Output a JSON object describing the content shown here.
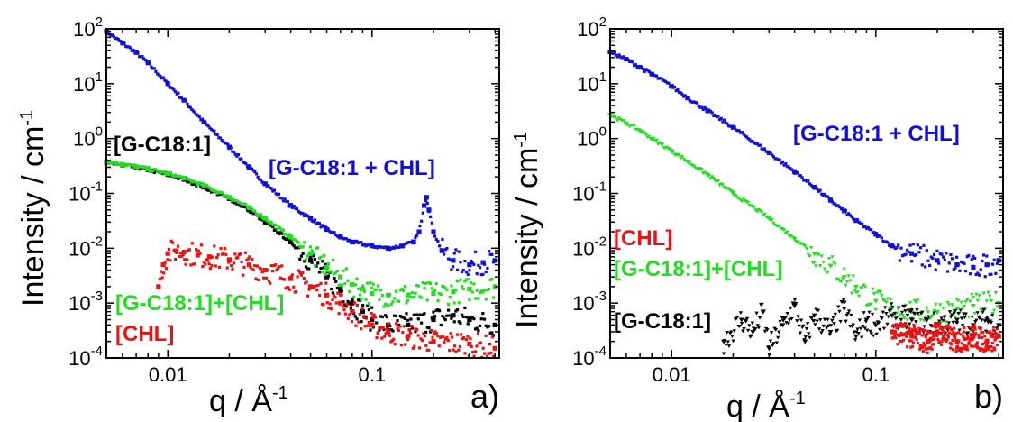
{
  "figure": {
    "panel_labels": [
      "a)",
      "b)"
    ]
  },
  "chart_data": [
    {
      "type": "scatter",
      "panel": "a)",
      "xlabel": "q / Å",
      "xlabel_sup": "-1",
      "ylabel": "Intensity / cm",
      "ylabel_sup": "-1",
      "xscale": "log",
      "yscale": "log",
      "xlim": [
        0.005,
        0.42
      ],
      "ylim": [
        0.0001,
        100
      ],
      "xticks": [
        {
          "v": 0.01,
          "label": "0.01"
        },
        {
          "v": 0.1,
          "label": "0.1"
        }
      ],
      "yticks": [
        {
          "v": 100,
          "b": "10",
          "e": "2"
        },
        {
          "v": 10,
          "b": "10",
          "e": "1"
        },
        {
          "v": 1,
          "b": "10",
          "e": "0"
        },
        {
          "v": 0.1,
          "b": "10",
          "e": "-1"
        },
        {
          "v": 0.01,
          "b": "10",
          "e": "-2"
        },
        {
          "v": 0.001,
          "b": "10",
          "e": "-3"
        },
        {
          "v": 0.0001,
          "b": "10",
          "e": "-4"
        }
      ],
      "annotations": [
        "[G-C18:1]",
        "[G-C18:1 + CHL]",
        "[G-C18:1]+[CHL]",
        "[CHL]"
      ],
      "series": [
        {
          "key": "gc18_chl",
          "color": "#1010d8",
          "marker": "square",
          "x": [
            0.005,
            0.006,
            0.007,
            0.008,
            0.01,
            0.012,
            0.015,
            0.02,
            0.025,
            0.03,
            0.04,
            0.05,
            0.06,
            0.07,
            0.08,
            0.1,
            0.12,
            0.14,
            0.16,
            0.17,
            0.18,
            0.185,
            0.19,
            0.2,
            0.22,
            0.25,
            0.3,
            0.35,
            0.4
          ],
          "y": [
            90,
            55,
            37,
            24,
            10,
            5,
            2,
            0.7,
            0.3,
            0.15,
            0.06,
            0.035,
            0.022,
            0.016,
            0.013,
            0.011,
            0.01,
            0.011,
            0.013,
            0.02,
            0.06,
            0.085,
            0.05,
            0.02,
            0.009,
            0.006,
            0.005,
            0.0055,
            0.006
          ]
        },
        {
          "key": "gc18",
          "color": "#000000",
          "marker": "square",
          "x": [
            0.005,
            0.006,
            0.007,
            0.008,
            0.01,
            0.012,
            0.015,
            0.02,
            0.025,
            0.03,
            0.04,
            0.05,
            0.06,
            0.07,
            0.08,
            0.09,
            0.1,
            0.12,
            0.15,
            0.2,
            0.25,
            0.3,
            0.4
          ],
          "y": [
            0.37,
            0.33,
            0.3,
            0.27,
            0.22,
            0.18,
            0.13,
            0.08,
            0.05,
            0.03,
            0.013,
            0.006,
            0.003,
            0.0018,
            0.001,
            0.0007,
            0.0005,
            0.0004,
            0.0004,
            0.0005,
            0.0006,
            0.0005,
            0.0004
          ]
        },
        {
          "key": "gc18_plus_chl",
          "color": "#22dd22",
          "marker": "square",
          "x": [
            0.005,
            0.006,
            0.007,
            0.008,
            0.01,
            0.012,
            0.015,
            0.02,
            0.025,
            0.03,
            0.04,
            0.05,
            0.06,
            0.07,
            0.08,
            0.09,
            0.1,
            0.12,
            0.15,
            0.2,
            0.25,
            0.3,
            0.4
          ],
          "y": [
            0.38,
            0.34,
            0.31,
            0.28,
            0.23,
            0.19,
            0.14,
            0.085,
            0.055,
            0.035,
            0.016,
            0.008,
            0.0045,
            0.003,
            0.0022,
            0.0018,
            0.0015,
            0.0014,
            0.0014,
            0.0015,
            0.0016,
            0.0018,
            0.002
          ]
        },
        {
          "key": "chl",
          "color": "#ee1111",
          "marker": "square",
          "x": [
            0.009,
            0.0095,
            0.01,
            0.011,
            0.012,
            0.014,
            0.016,
            0.02,
            0.025,
            0.03,
            0.04,
            0.05,
            0.06,
            0.07,
            0.08,
            0.1,
            0.12,
            0.15,
            0.2,
            0.3,
            0.4
          ],
          "y": [
            0.002,
            0.005,
            0.008,
            0.009,
            0.0085,
            0.0075,
            0.007,
            0.0062,
            0.005,
            0.004,
            0.0028,
            0.002,
            0.0014,
            0.001,
            0.0007,
            0.0004,
            0.0003,
            0.00025,
            0.0002,
            0.00018,
            0.00015
          ]
        }
      ]
    },
    {
      "type": "scatter",
      "panel": "b)",
      "xlabel": "q / Å",
      "xlabel_sup": "-1",
      "ylabel": "Intensity / cm",
      "ylabel_sup": "-1",
      "xscale": "log",
      "yscale": "log",
      "xlim": [
        0.005,
        0.42
      ],
      "ylim": [
        0.0001,
        100
      ],
      "xticks": [
        {
          "v": 0.01,
          "label": "0.01"
        },
        {
          "v": 0.1,
          "label": "0.1"
        }
      ],
      "yticks": [
        {
          "v": 100,
          "b": "10",
          "e": "2"
        },
        {
          "v": 10,
          "b": "10",
          "e": "1"
        },
        {
          "v": 1,
          "b": "10",
          "e": "0"
        },
        {
          "v": 0.1,
          "b": "10",
          "e": "-1"
        },
        {
          "v": 0.01,
          "b": "10",
          "e": "-2"
        },
        {
          "v": 0.001,
          "b": "10",
          "e": "-3"
        },
        {
          "v": 0.0001,
          "b": "10",
          "e": "-4"
        }
      ],
      "annotations": [
        "[G-C18:1 + CHL]",
        "[CHL]",
        "[G-C18:1]+[CHL]",
        "[G-C18:1]"
      ],
      "series": [
        {
          "key": "gc18_chl",
          "color": "#1010d8",
          "marker": "square",
          "x": [
            0.005,
            0.006,
            0.007,
            0.008,
            0.01,
            0.012,
            0.015,
            0.02,
            0.03,
            0.04,
            0.05,
            0.06,
            0.07,
            0.08,
            0.1,
            0.12,
            0.15,
            0.2,
            0.25,
            0.3,
            0.35,
            0.4
          ],
          "y": [
            38,
            28,
            20,
            15,
            9,
            5.5,
            3.2,
            1.6,
            0.55,
            0.25,
            0.13,
            0.075,
            0.048,
            0.032,
            0.018,
            0.011,
            0.008,
            0.006,
            0.005,
            0.0045,
            0.005,
            0.006
          ]
        },
        {
          "key": "gc18_plus_chl",
          "color": "#22dd22",
          "marker": "triangle",
          "x": [
            0.005,
            0.006,
            0.007,
            0.008,
            0.01,
            0.012,
            0.015,
            0.02,
            0.03,
            0.04,
            0.05,
            0.06,
            0.07,
            0.08,
            0.1,
            0.12,
            0.15,
            0.2,
            0.25,
            0.3,
            0.4
          ],
          "y": [
            2.7,
            1.9,
            1.4,
            1.0,
            0.6,
            0.38,
            0.22,
            0.1,
            0.035,
            0.015,
            0.008,
            0.0048,
            0.003,
            0.002,
            0.0011,
            0.0008,
            0.0007,
            0.0007,
            0.0008,
            0.0009,
            0.001
          ]
        },
        {
          "key": "gc18",
          "color": "#000000",
          "marker": "triangle",
          "x": [
            0.018,
            0.022,
            0.025,
            0.028,
            0.03,
            0.035,
            0.04,
            0.045,
            0.05,
            0.06,
            0.07,
            0.08,
            0.09,
            0.1,
            0.12,
            0.15,
            0.2,
            0.25,
            0.3,
            0.35,
            0.4
          ],
          "y": [
            0.0002,
            0.0005,
            0.0003,
            0.0007,
            0.00015,
            0.0004,
            0.0009,
            0.0002,
            0.0006,
            0.0003,
            0.0008,
            0.00025,
            0.0005,
            0.0004,
            0.0006,
            0.0005,
            0.0004,
            0.0005,
            0.0004,
            0.0005,
            0.0004
          ]
        },
        {
          "key": "chl",
          "color": "#ee1111",
          "marker": "square",
          "x": [
            0.12,
            0.15,
            0.18,
            0.2,
            0.25,
            0.3,
            0.35,
            0.4
          ],
          "y": [
            0.0003,
            0.00025,
            0.0002,
            0.0003,
            0.0002,
            0.00025,
            0.0002,
            0.00025
          ]
        }
      ]
    }
  ]
}
